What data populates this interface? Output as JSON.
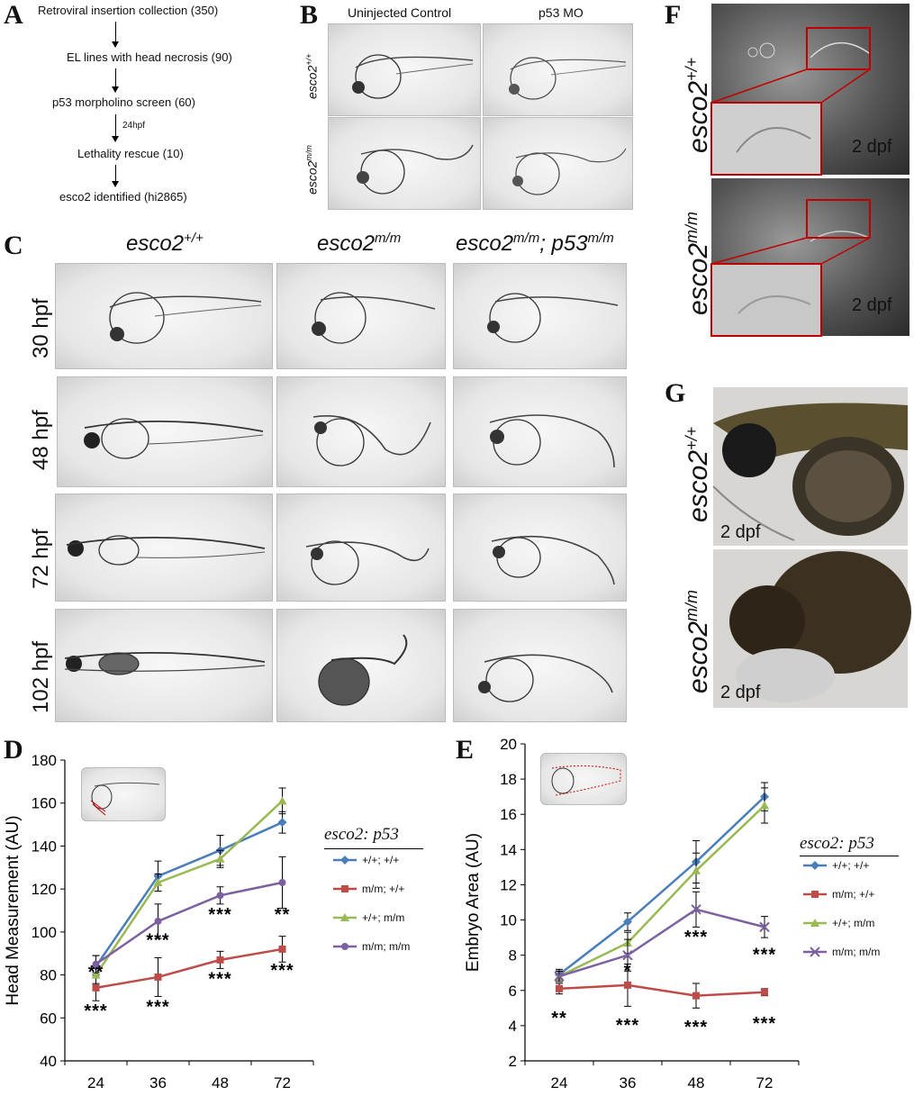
{
  "panels": {
    "A": "A",
    "B": "B",
    "C": "C",
    "D": "D",
    "E": "E",
    "F": "F",
    "G": "G"
  },
  "flowchart": {
    "steps": [
      "Retroviral insertion collection (350)",
      "EL lines with head necrosis (90)",
      "p53 morpholino screen  (60)",
      "Lethality rescue (10)",
      "esco2 identified (hi2865)"
    ],
    "arrow_note": "24hpf"
  },
  "panelB": {
    "col_uninjected": "Uninjected Control",
    "col_mo": "p53 MO",
    "row_wt_base": "esco2",
    "row_wt_sup": "+/+",
    "row_mut_base": "esco2",
    "row_mut_sup": "m/m"
  },
  "panelC": {
    "col1_base": "esco2",
    "col1_sup": "+/+",
    "col2_base": "esco2",
    "col2_sup": "m/m",
    "col3_base": "esco2",
    "col3_sup": "m/m",
    "col3_mid": "; p53",
    "col3_sup2": "m/m",
    "rows": [
      "30 hpf",
      "48 hpf",
      "72 hpf",
      "102 hpf"
    ]
  },
  "panelF": {
    "wt_base": "esco2",
    "wt_sup": "+/+",
    "mut_base": "esco2",
    "mut_sup": "m/m",
    "stage": "2 dpf"
  },
  "panelG": {
    "wt_base": "esco2",
    "wt_sup": "+/+",
    "mut_base": "esco2",
    "mut_sup": "m/m",
    "stage": "2 dpf"
  },
  "legend": {
    "title": "esco2: p53",
    "items": [
      "+/+; +/+",
      "m/m; +/+",
      "+/+; m/m",
      "m/m; m/m"
    ]
  },
  "colors": {
    "blue": "#4a7ebb",
    "red": "#be4b48",
    "green": "#98b954",
    "purple": "#7d60a0"
  },
  "chart_data": [
    {
      "type": "line",
      "ylabel": "Head Measurement (AU)",
      "xlabel": "",
      "categories": [
        "24",
        "36",
        "48",
        "72"
      ],
      "ylim": [
        40,
        180
      ],
      "yticks": [
        40,
        60,
        80,
        100,
        120,
        140,
        160,
        180
      ],
      "series": [
        {
          "name": "+/+; +/+",
          "color": "#4a7ebb",
          "marker": "diamond",
          "values": [
            84,
            126,
            138,
            151
          ],
          "err": [
            5,
            7,
            7,
            5
          ]
        },
        {
          "name": "m/m; +/+",
          "color": "#be4b48",
          "marker": "square",
          "values": [
            74,
            79,
            87,
            92
          ],
          "err": [
            6,
            9,
            4,
            6
          ]
        },
        {
          "name": "+/+; m/m",
          "color": "#98b954",
          "marker": "triangle",
          "values": [
            80,
            123,
            134,
            161
          ],
          "err": [
            4,
            4,
            4,
            6
          ]
        },
        {
          "name": "m/m; m/m",
          "color": "#7d60a0",
          "marker": "circle",
          "values": [
            85,
            105,
            117,
            123
          ],
          "err": [
            4,
            8,
            4,
            12
          ]
        }
      ],
      "annotations": [
        {
          "text": "**",
          "x": "24",
          "y": 81
        },
        {
          "text": "***",
          "x": "24",
          "y": 63
        },
        {
          "text": "***",
          "x": "36",
          "y": 96
        },
        {
          "text": "***",
          "x": "36",
          "y": 65
        },
        {
          "text": "***",
          "x": "48",
          "y": 108
        },
        {
          "text": "***",
          "x": "48",
          "y": 78
        },
        {
          "text": "**",
          "x": "72",
          "y": 108
        },
        {
          "text": "***",
          "x": "72",
          "y": 82
        }
      ]
    },
    {
      "type": "line",
      "ylabel": "Embryo  Area (AU)",
      "xlabel": "",
      "categories": [
        "24",
        "36",
        "48",
        "72"
      ],
      "ylim": [
        2,
        20
      ],
      "yticks": [
        2,
        4,
        6,
        8,
        10,
        12,
        14,
        16,
        18,
        20
      ],
      "series": [
        {
          "name": "+/+; +/+",
          "color": "#4a7ebb",
          "marker": "diamond",
          "values": [
            6.9,
            9.9,
            13.3,
            17.0
          ],
          "err": [
            0.3,
            0.5,
            1.2,
            0.8
          ]
        },
        {
          "name": "m/m; +/+",
          "color": "#be4b48",
          "marker": "square",
          "values": [
            6.1,
            6.3,
            5.7,
            5.9
          ],
          "err": [
            0.3,
            1.2,
            0.7,
            0.2
          ]
        },
        {
          "name": "+/+; m/m",
          "color": "#98b954",
          "marker": "triangle",
          "values": [
            6.8,
            8.7,
            12.8,
            16.5
          ],
          "err": [
            0.3,
            0.6,
            1.0,
            1.0
          ]
        },
        {
          "name": "m/m; m/m",
          "color": "#7d60a0",
          "marker": "cross",
          "values": [
            6.8,
            8.0,
            10.6,
            9.6
          ],
          "err": [
            0.3,
            0.9,
            1.0,
            0.6
          ]
        }
      ],
      "annotations": [
        {
          "text": "**",
          "x": "24",
          "y": 4.4
        },
        {
          "text": "***",
          "x": "36",
          "y": 4.0
        },
        {
          "text": "*",
          "x": "36",
          "y": 7.1
        },
        {
          "text": "***",
          "x": "48",
          "y": 9.0
        },
        {
          "text": "***",
          "x": "48",
          "y": 3.9
        },
        {
          "text": "***",
          "x": "72",
          "y": 8.0
        },
        {
          "text": "***",
          "x": "72",
          "y": 4.1
        }
      ]
    }
  ]
}
